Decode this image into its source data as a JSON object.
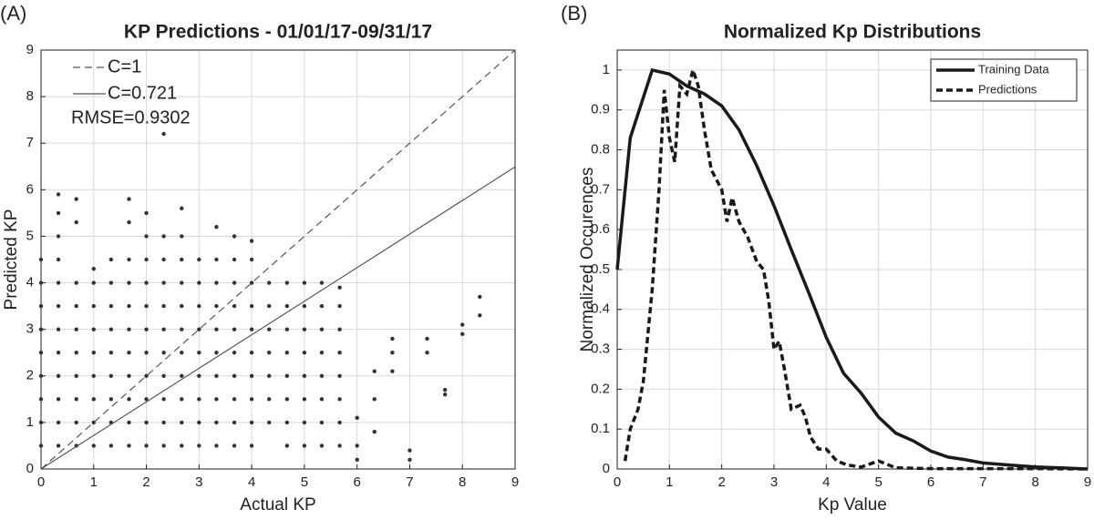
{
  "chart_data": [
    {
      "type": "scatter",
      "panel_label": "(A)",
      "title": "KP Predictions - 01/01/17-09/31/17",
      "x_label": "Actual KP",
      "y_label": "Predicted KP",
      "annotation": "RMSE=0.9302",
      "xlim": [
        0,
        9
      ],
      "ylim": [
        0,
        9
      ],
      "xticks": [
        0,
        1,
        2,
        3,
        4,
        5,
        6,
        7,
        8,
        9
      ],
      "yticks": [
        0,
        1,
        2,
        3,
        4,
        5,
        6,
        7,
        8,
        9
      ],
      "grid": true,
      "legend": "upper left",
      "point_color": "#333333",
      "points": [
        {
          "x": 0,
          "y": [
            0.5,
            1,
            1.5,
            2,
            2.5,
            3,
            3.5,
            4,
            4.5
          ]
        },
        {
          "x": 0.33,
          "y": [
            0.5,
            1,
            1.5,
            2,
            2.5,
            3,
            3.5,
            4,
            4.5,
            5,
            5.5,
            5.9
          ]
        },
        {
          "x": 0.67,
          "y": [
            0.5,
            1,
            1.5,
            2,
            2.5,
            3,
            3.5,
            4,
            5.3,
            5.8
          ]
        },
        {
          "x": 1,
          "y": [
            0.5,
            1,
            1.5,
            2,
            2.5,
            3,
            3.5,
            4,
            4.3
          ]
        },
        {
          "x": 1.33,
          "y": [
            0.5,
            1,
            1.5,
            2,
            2.5,
            3,
            3.5,
            4,
            4.5
          ]
        },
        {
          "x": 1.67,
          "y": [
            0.5,
            1,
            1.5,
            2,
            2.5,
            3,
            3.5,
            4,
            4.5,
            5.3,
            5.8
          ]
        },
        {
          "x": 2,
          "y": [
            0.5,
            1,
            1.5,
            2,
            2.5,
            3,
            3.5,
            4,
            4.5,
            5,
            5.5
          ]
        },
        {
          "x": 2.33,
          "y": [
            0.5,
            1,
            1.5,
            2,
            2.5,
            3,
            3.5,
            4,
            4.5,
            5,
            7.2
          ]
        },
        {
          "x": 2.67,
          "y": [
            0.5,
            1,
            1.5,
            2,
            2.5,
            3,
            3.5,
            4,
            4.5,
            5,
            5.6
          ]
        },
        {
          "x": 3,
          "y": [
            0.5,
            1,
            1.5,
            2,
            2.5,
            3,
            3.5,
            4,
            4.5
          ]
        },
        {
          "x": 3.33,
          "y": [
            0.5,
            1,
            1.5,
            2,
            2.5,
            3,
            3.5,
            4,
            4.5,
            5.2
          ]
        },
        {
          "x": 3.67,
          "y": [
            0.5,
            1,
            1.5,
            2,
            2.5,
            3,
            3.5,
            4,
            4.5,
            5
          ]
        },
        {
          "x": 4,
          "y": [
            0.5,
            1,
            1.5,
            2,
            2.5,
            3,
            3.5,
            4,
            4.5,
            4.9
          ]
        },
        {
          "x": 4.33,
          "y": [
            1,
            1.5,
            2,
            2.5,
            3,
            3.5,
            4
          ]
        },
        {
          "x": 4.67,
          "y": [
            0.5,
            1,
            1.5,
            2,
            2.5,
            3,
            3.5,
            4
          ]
        },
        {
          "x": 5,
          "y": [
            0.5,
            1,
            1.5,
            2,
            2.5,
            3,
            3.5,
            4
          ]
        },
        {
          "x": 5.33,
          "y": [
            0.5,
            1,
            1.5,
            2,
            2.5,
            3,
            3.5,
            4
          ]
        },
        {
          "x": 5.67,
          "y": [
            0.5,
            1,
            1.5,
            2,
            2.5,
            3,
            3.5,
            3.9
          ]
        },
        {
          "x": 6,
          "y": [
            0.2,
            0.5,
            1.1
          ]
        },
        {
          "x": 6.33,
          "y": [
            0.8,
            1.5,
            2.1
          ]
        },
        {
          "x": 6.67,
          "y": [
            2.1,
            2.5,
            2.8
          ]
        },
        {
          "x": 7,
          "y": [
            0.2,
            0.4
          ]
        },
        {
          "x": 7.33,
          "y": [
            2.5,
            2.8
          ]
        },
        {
          "x": 7.67,
          "y": [
            1.6,
            1.7
          ]
        },
        {
          "x": 8,
          "y": [
            2.9,
            3.1
          ]
        },
        {
          "x": 8.33,
          "y": [
            3.3,
            3.7
          ]
        }
      ],
      "series": [
        {
          "name": "C=1",
          "color": "#555555",
          "dash": true,
          "x": [
            0,
            9
          ],
          "values": [
            0,
            9
          ]
        },
        {
          "name": "C=0.721",
          "color": "#555555",
          "dash": false,
          "x": [
            0,
            9
          ],
          "values": [
            0,
            6.489
          ]
        }
      ]
    },
    {
      "type": "line",
      "panel_label": "(B)",
      "title": "Normalized Kp Distributions",
      "x_label": "Kp Value",
      "y_label": "Normalized Occurences",
      "xlim": [
        0,
        9
      ],
      "ylim": [
        0,
        1.05
      ],
      "xticks": [
        0,
        1,
        2,
        3,
        4,
        5,
        6,
        7,
        8,
        9
      ],
      "yticks": [
        0,
        0.1,
        0.2,
        0.3,
        0.4,
        0.5,
        0.6,
        0.7,
        0.8,
        0.9,
        1
      ],
      "grid": true,
      "legend": "upper right",
      "series": [
        {
          "name": "Training Data",
          "color": "#1a1a1a",
          "dash": false,
          "x": [
            0,
            0.25,
            0.67,
            1,
            1.33,
            1.67,
            2,
            2.33,
            2.67,
            3,
            3.33,
            3.67,
            4,
            4.33,
            4.67,
            5,
            5.33,
            5.67,
            6,
            6.33,
            6.67,
            7,
            7.5,
            8,
            8.5,
            9
          ],
          "values": [
            0.5,
            0.83,
            1.0,
            0.99,
            0.96,
            0.94,
            0.91,
            0.85,
            0.76,
            0.66,
            0.55,
            0.44,
            0.33,
            0.24,
            0.19,
            0.13,
            0.09,
            0.07,
            0.045,
            0.03,
            0.023,
            0.015,
            0.01,
            0.005,
            0.003,
            0.0
          ]
        },
        {
          "name": "Predictions",
          "color": "#1a1a1a",
          "dash": true,
          "x": [
            0.15,
            0.25,
            0.4,
            0.5,
            0.67,
            0.8,
            0.9,
            1,
            1.1,
            1.2,
            1.33,
            1.45,
            1.55,
            1.67,
            1.8,
            2,
            2.1,
            2.2,
            2.33,
            2.5,
            2.67,
            2.8,
            2.9,
            3,
            3.1,
            3.2,
            3.33,
            3.5,
            3.6,
            3.7,
            3.85,
            4,
            4.2,
            4.4,
            4.67,
            5,
            5.33,
            5.67,
            6,
            7,
            8,
            9
          ],
          "values": [
            0.02,
            0.1,
            0.15,
            0.22,
            0.45,
            0.7,
            0.95,
            0.83,
            0.77,
            0.96,
            0.94,
            1.0,
            0.96,
            0.85,
            0.75,
            0.7,
            0.62,
            0.68,
            0.62,
            0.58,
            0.52,
            0.5,
            0.42,
            0.3,
            0.32,
            0.25,
            0.15,
            0.16,
            0.13,
            0.08,
            0.05,
            0.05,
            0.02,
            0.01,
            0.005,
            0.02,
            0.003,
            0.002,
            0.001,
            0.001,
            0.001,
            0.0
          ]
        }
      ]
    }
  ]
}
